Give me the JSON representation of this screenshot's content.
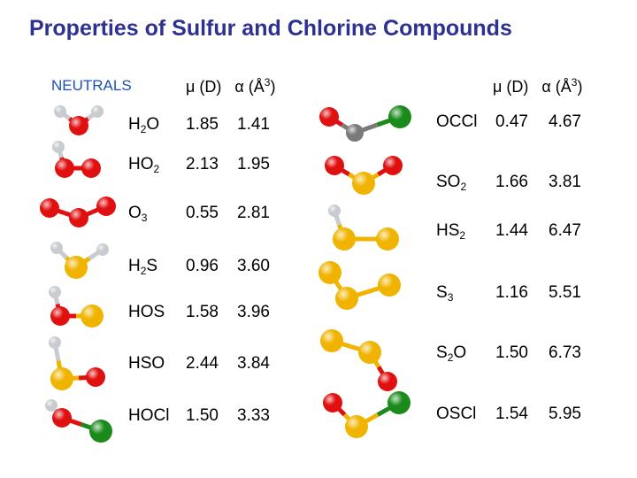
{
  "title": "Properties of Sulfur and Chlorine Compounds",
  "section_label": "NEUTRALS",
  "header": {
    "mu": "μ (D)",
    "alpha": "α (Å",
    "alpha_exp": "3",
    "alpha_close": ")"
  },
  "colors": {
    "title": "#2e3192",
    "section": "#1e4fb5",
    "oxygen": "#e01010",
    "sulfur": "#f0b400",
    "chlorine": "#1a8a1a",
    "hydrogen": "#c8ccd0",
    "carbon": "#7a7a7a"
  },
  "left_table": [
    {
      "base": "H",
      "sub": "2",
      "rest": "O",
      "mu": "1.85",
      "alpha": "1.41"
    },
    {
      "base": "HO",
      "sub": "2",
      "rest": "",
      "mu": "2.13",
      "alpha": "1.95"
    },
    {
      "base": "O",
      "sub": "3",
      "rest": "",
      "mu": "0.55",
      "alpha": "2.81"
    },
    {
      "base": "H",
      "sub": "2",
      "rest": "S",
      "mu": "0.96",
      "alpha": "3.60"
    },
    {
      "base": "HOS",
      "sub": "",
      "rest": "",
      "mu": "1.58",
      "alpha": "3.96"
    },
    {
      "base": "HSO",
      "sub": "",
      "rest": "",
      "mu": "2.44",
      "alpha": "3.84"
    },
    {
      "base": "HOCl",
      "sub": "",
      "rest": "",
      "mu": "1.50",
      "alpha": "3.33"
    }
  ],
  "right_table": [
    {
      "base": "OCCl",
      "sub": "",
      "rest": "",
      "mu": "0.47",
      "alpha": "4.67"
    },
    {
      "base": "SO",
      "sub": "2",
      "rest": "",
      "mu": "1.66",
      "alpha": "3.81"
    },
    {
      "base": "HS",
      "sub": "2",
      "rest": "",
      "mu": "1.44",
      "alpha": "6.47"
    },
    {
      "base": "S",
      "sub": "3",
      "rest": "",
      "mu": "1.16",
      "alpha": "5.51"
    },
    {
      "base": "S",
      "sub": "2",
      "rest": "O",
      "mu": "1.50",
      "alpha": "6.73"
    },
    {
      "base": "OSCl",
      "sub": "",
      "rest": "",
      "mu": "1.54",
      "alpha": "5.95"
    }
  ],
  "molecules": [
    {
      "atoms": [
        "hydrogen",
        "oxygen",
        "hydrogen"
      ]
    },
    {
      "atoms": [
        "hydrogen",
        "oxygen",
        "oxygen"
      ]
    },
    {
      "atoms": [
        "oxygen",
        "oxygen",
        "oxygen"
      ]
    },
    {
      "atoms": [
        "hydrogen",
        "sulfur",
        "hydrogen"
      ]
    },
    {
      "atoms": [
        "hydrogen",
        "oxygen",
        "sulfur"
      ]
    },
    {
      "atoms": [
        "hydrogen",
        "sulfur",
        "oxygen"
      ]
    },
    {
      "atoms": [
        "hydrogen",
        "oxygen",
        "chlorine"
      ]
    },
    {
      "atoms": [
        "oxygen",
        "carbon",
        "chlorine"
      ]
    },
    {
      "atoms": [
        "oxygen",
        "sulfur",
        "oxygen"
      ]
    },
    {
      "atoms": [
        "hydrogen",
        "sulfur",
        "sulfur"
      ]
    },
    {
      "atoms": [
        "sulfur",
        "sulfur",
        "sulfur"
      ]
    },
    {
      "atoms": [
        "sulfur",
        "sulfur",
        "oxygen"
      ]
    },
    {
      "atoms": [
        "oxygen",
        "sulfur",
        "chlorine"
      ]
    }
  ]
}
